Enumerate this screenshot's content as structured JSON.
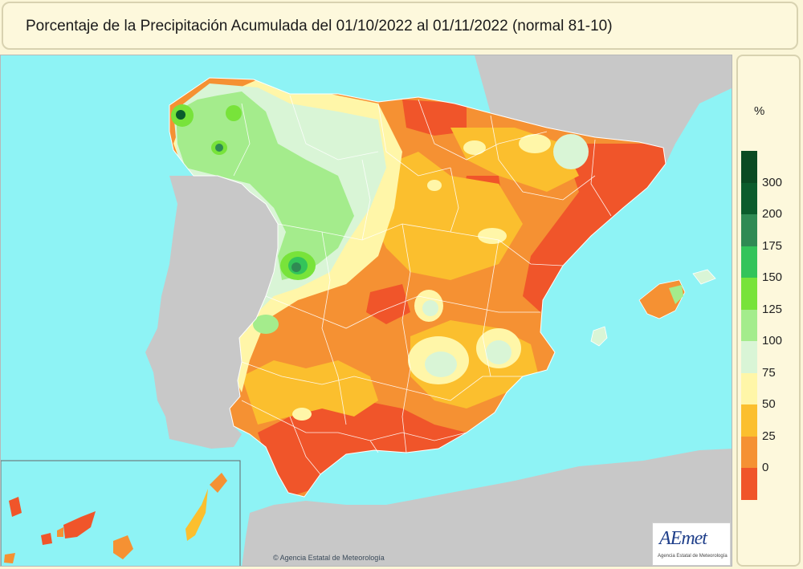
{
  "title": "Porcentaje de la Precipitación Acumulada del 01/10/2022 al 01/11/2022 (normal 81-10)",
  "legend": {
    "unit": "%",
    "classes": [
      {
        "label": "300",
        "color": "#0b5c2c"
      },
      {
        "label": "200",
        "color": "#2f8a53"
      },
      {
        "label": "175",
        "color": "#33c45a"
      },
      {
        "label": "150",
        "color": "#78e33a"
      },
      {
        "label": "125",
        "color": "#a4ec8c"
      },
      {
        "label": "100",
        "color": "#d9f5d6"
      },
      {
        "label": "75",
        "color": "#fff6a8"
      },
      {
        "label": "50",
        "color": "#fbbf2e"
      },
      {
        "label": "25",
        "color": "#f59133"
      },
      {
        "label": "0",
        "color": "#f0552a"
      }
    ],
    "extra_top_color": "#0a4a22"
  },
  "colors": {
    "sea": "#8ef3f5",
    "land_outside": "#c8c8c8",
    "boundary": "#ffffff"
  },
  "logo": {
    "text": "AEmet",
    "subtitle": "Agencia Estatal de Meteorología"
  },
  "copyright": "© Agencia Estatal de Meteorología"
}
